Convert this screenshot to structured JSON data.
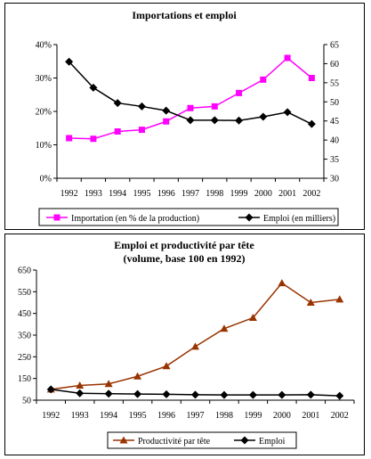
{
  "chart_data": [
    {
      "type": "line",
      "title": "Importations et emploi",
      "categories": [
        "1992",
        "1993",
        "1994",
        "1995",
        "1996",
        "1997",
        "1998",
        "1999",
        "2000",
        "2001",
        "2002"
      ],
      "y_left_ticks": [
        "0%",
        "10%",
        "20%",
        "30%",
        "40%"
      ],
      "y_left_lim": [
        0,
        40
      ],
      "y_right_ticks": [
        "30",
        "35",
        "40",
        "45",
        "50",
        "55",
        "60",
        "65"
      ],
      "y_right_lim": [
        30,
        65
      ],
      "series": [
        {
          "name": "Importation (en % de la  production)",
          "axis": "left",
          "color": "#ff00ff",
          "marker": "square",
          "values": [
            12,
            11.8,
            14,
            14.5,
            17,
            21,
            21.5,
            25.5,
            29.5,
            36,
            30
          ]
        },
        {
          "name": "Emploi (en milliers)",
          "axis": "right",
          "color": "#000000",
          "marker": "diamond",
          "values": [
            60.5,
            53.7,
            49.7,
            48.8,
            47.7,
            45.2,
            45.2,
            45.1,
            46.1,
            47.3,
            44.2
          ]
        }
      ],
      "grid": false,
      "legend_position": "bottom"
    },
    {
      "type": "line",
      "title": "Emploi et productivité par tête",
      "subtitle": "(volume, base 100 en 1992)",
      "categories": [
        "1992",
        "1993",
        "1994",
        "1995",
        "1996",
        "1997",
        "1998",
        "1999",
        "2000",
        "2001",
        "2002"
      ],
      "y_ticks": [
        "50",
        "150",
        "250",
        "350",
        "450",
        "550",
        "650"
      ],
      "ylim": [
        50,
        650
      ],
      "series": [
        {
          "name": "Productivité par tête",
          "color": "#993300",
          "marker": "triangle",
          "values": [
            100,
            118,
            125,
            160,
            207,
            297,
            380,
            430,
            590,
            500,
            515
          ]
        },
        {
          "name": "Emploi",
          "color": "#000000",
          "marker": "diamond",
          "values": [
            100,
            82,
            80,
            78,
            77,
            75,
            74,
            74,
            74,
            75,
            70
          ]
        }
      ],
      "grid": false,
      "legend_position": "bottom"
    }
  ]
}
